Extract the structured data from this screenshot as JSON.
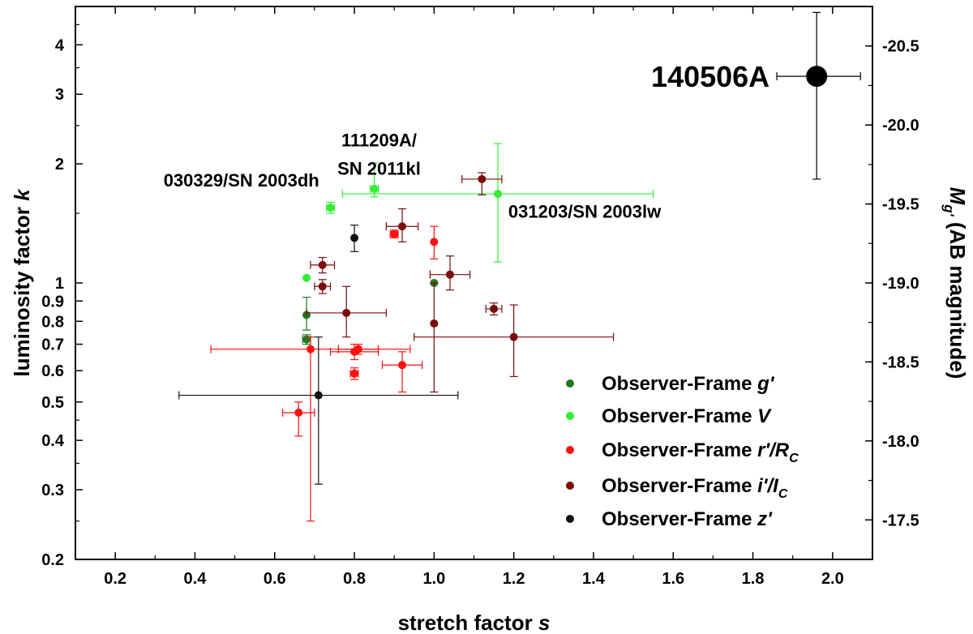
{
  "chart_data": {
    "type": "scatter",
    "xlabel": "stretch factor",
    "xlabel_var": "s",
    "ylabel": "luminosity factor",
    "ylabel_var": "k",
    "y2label": "(AB magnitude)",
    "y2label_var": "M",
    "y2label_sub": "g'",
    "xlim": [
      0.1,
      2.1
    ],
    "ylim": [
      0.2,
      5.0
    ],
    "yscale": "log",
    "y2lim": [
      -17.25,
      -20.75
    ],
    "x_ticks": [
      "0.2",
      "0.4",
      "0.6",
      "0.8",
      "1.0",
      "1.2",
      "1.4",
      "1.6",
      "1.8",
      "2.0"
    ],
    "y_ticks": [
      "0.2",
      "0.3",
      "0.4",
      "0.5",
      "0.6",
      "0.7",
      "0.8",
      "0.9",
      "1",
      "2",
      "3",
      "4"
    ],
    "y2_ticks": [
      "-17.5",
      "-18.0",
      "-18.5",
      "-19.0",
      "-19.5",
      "-20.0",
      "-20.5"
    ],
    "grid": false,
    "legend_position": "bottom-right",
    "legend": [
      {
        "prefix": "Observer-Frame ",
        "var": "g'",
        "sub": "",
        "color": "#1e7a1e"
      },
      {
        "prefix": "Observer-Frame ",
        "var": "V",
        "sub": "",
        "color": "#33ee33"
      },
      {
        "prefix": "Observer-Frame ",
        "var": "r'/R",
        "sub": "C",
        "color": "#ff0f0f"
      },
      {
        "prefix": "Observer-Frame ",
        "var": "i'/I",
        "sub": "C",
        "color": "#7a0c0c"
      },
      {
        "prefix": "Observer-Frame ",
        "var": "z'",
        "sub": "",
        "color": "#111111"
      }
    ],
    "series": [
      {
        "color": "#1e7a1e",
        "points": [
          {
            "x": 0.68,
            "y": 0.83,
            "yerr": [
              0.07,
              0.09
            ]
          },
          {
            "x": 0.68,
            "y": 0.72,
            "xerr": [
              0.01,
              0.01
            ],
            "yerr": [
              0.02,
              0.02
            ]
          },
          {
            "x": 1.0,
            "y": 1.0
          }
        ]
      },
      {
        "color": "#33ee33",
        "points": [
          {
            "x": 0.68,
            "y": 1.03
          },
          {
            "x": 0.74,
            "y": 1.55,
            "xerr": [
              0.01,
              0.01
            ],
            "yerr": [
              0.05,
              0.05
            ]
          },
          {
            "x": 0.85,
            "y": 1.73,
            "xerr": [
              0.01,
              0.01
            ],
            "yerr": [
              0.08,
              0.28
            ]
          },
          {
            "x": 1.16,
            "y": 1.68,
            "xerr": [
              0.39,
              0.39
            ],
            "yerr": [
              0.55,
              0.57
            ]
          }
        ]
      },
      {
        "color": "#ff0f0f",
        "points": [
          {
            "x": 0.69,
            "y": 0.68,
            "xerr": [
              0.25,
              0.25
            ],
            "yerr": [
              0.43,
              0.05
            ]
          },
          {
            "x": 0.66,
            "y": 0.47,
            "xerr": [
              0.04,
              0.04
            ],
            "yerr": [
              0.06,
              0.03
            ]
          },
          {
            "x": 0.8,
            "y": 0.67,
            "xerr": [
              0.06,
              0.06
            ],
            "yerr": [
              0.03,
              0.03
            ]
          },
          {
            "x": 0.81,
            "y": 0.68,
            "xerr": [
              0.05,
              0.05
            ],
            "yerr": [
              0.02,
              0.02
            ]
          },
          {
            "x": 0.8,
            "y": 0.59,
            "xerr": [
              0.01,
              0.01
            ],
            "yerr": [
              0.02,
              0.02
            ]
          },
          {
            "x": 0.92,
            "y": 0.62,
            "xerr": [
              0.05,
              0.05
            ],
            "yerr": [
              0.09,
              0.05
            ]
          },
          {
            "x": 0.9,
            "y": 1.33,
            "xerr": [
              0.01,
              0.01
            ],
            "yerr": [
              0.03,
              0.03
            ]
          },
          {
            "x": 1.0,
            "y": 1.27,
            "yerr": [
              0.12,
              0.12
            ]
          }
        ]
      },
      {
        "color": "#7a0c0c",
        "points": [
          {
            "x": 0.72,
            "y": 1.11,
            "xerr": [
              0.03,
              0.03
            ],
            "yerr": [
              0.05,
              0.05
            ]
          },
          {
            "x": 0.72,
            "y": 0.98,
            "xerr": [
              0.02,
              0.02
            ],
            "yerr": [
              0.04,
              0.04
            ]
          },
          {
            "x": 0.78,
            "y": 0.84,
            "xerr": [
              0.1,
              0.1
            ],
            "yerr": [
              0.11,
              0.14
            ]
          },
          {
            "x": 0.92,
            "y": 1.39,
            "xerr": [
              0.04,
              0.04
            ],
            "yerr": [
              0.12,
              0.15
            ]
          },
          {
            "x": 1.0,
            "y": 0.79,
            "yerr": [
              0.26,
              0.21
            ]
          },
          {
            "x": 1.04,
            "y": 1.05,
            "xerr": [
              0.05,
              0.05
            ],
            "yerr": [
              0.09,
              0.12
            ]
          },
          {
            "x": 1.12,
            "y": 1.83,
            "xerr": [
              0.05,
              0.05
            ],
            "yerr": [
              0.16,
              0.07
            ]
          },
          {
            "x": 1.15,
            "y": 0.86,
            "xerr": [
              0.02,
              0.02
            ],
            "yerr": [
              0.03,
              0.03
            ]
          },
          {
            "x": 1.2,
            "y": 0.73,
            "xerr": [
              0.25,
              0.25
            ],
            "yerr": [
              0.15,
              0.15
            ]
          }
        ]
      },
      {
        "color": "#111111",
        "points": [
          {
            "x": 0.71,
            "y": 0.52,
            "xerr": [
              0.35,
              0.35
            ],
            "yerr": [
              0.21,
              0.21
            ]
          },
          {
            "x": 0.8,
            "y": 1.3,
            "yerr": [
              0.1,
              0.1
            ]
          }
        ]
      },
      {
        "color": "#000000",
        "big": true,
        "points": [
          {
            "x": 1.96,
            "y": 3.33,
            "xerr": [
              0.1,
              0.11
            ],
            "yerr": [
              1.5,
              1.5
            ]
          }
        ]
      }
    ],
    "annotations": [
      {
        "text": "140506A",
        "x": 1.96,
        "y": 3.33,
        "big": true
      },
      {
        "text": "111209A/",
        "x": 0.87,
        "y": 2.3
      },
      {
        "text": "SN 2011kl",
        "x": 0.87,
        "y": 1.95
      },
      {
        "text": "030329/SN 2003dh",
        "x": 0.72,
        "y": 1.82
      },
      {
        "text": "031203/SN 2003lw",
        "x": 1.17,
        "y": 1.52
      }
    ]
  }
}
